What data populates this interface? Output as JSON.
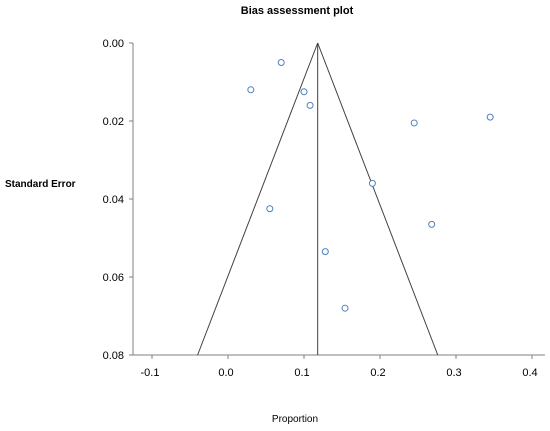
{
  "chart_data": {
    "type": "scatter",
    "title": "Bias assessment plot",
    "xlabel": "Proportion",
    "ylabel": "Standard Error",
    "xlim": [
      -0.1,
      0.4
    ],
    "ylim": [
      0.0,
      0.08
    ],
    "y_inverted": true,
    "x_ticks": [
      "-0.1",
      "0.0",
      "0.1",
      "0.2",
      "0.3",
      "0.4"
    ],
    "y_ticks": [
      "0.00",
      "0.02",
      "0.04",
      "0.06",
      "0.08"
    ],
    "pooled_estimate": 0.118,
    "funnel": {
      "apex": [
        0.118,
        0.0
      ],
      "base_left": [
        -0.04,
        0.08
      ],
      "base_right": [
        0.276,
        0.08
      ]
    },
    "points": [
      {
        "x": 0.07,
        "y": 0.005
      },
      {
        "x": 0.03,
        "y": 0.012
      },
      {
        "x": 0.1,
        "y": 0.0125
      },
      {
        "x": 0.108,
        "y": 0.016
      },
      {
        "x": 0.245,
        "y": 0.0205
      },
      {
        "x": 0.345,
        "y": 0.019
      },
      {
        "x": 0.19,
        "y": 0.036
      },
      {
        "x": 0.055,
        "y": 0.0425
      },
      {
        "x": 0.268,
        "y": 0.0465
      },
      {
        "x": 0.128,
        "y": 0.0535
      },
      {
        "x": 0.154,
        "y": 0.068
      }
    ],
    "colors": {
      "marker": "#4f81bd",
      "funnel": "#404040",
      "axis": "#808080"
    }
  }
}
